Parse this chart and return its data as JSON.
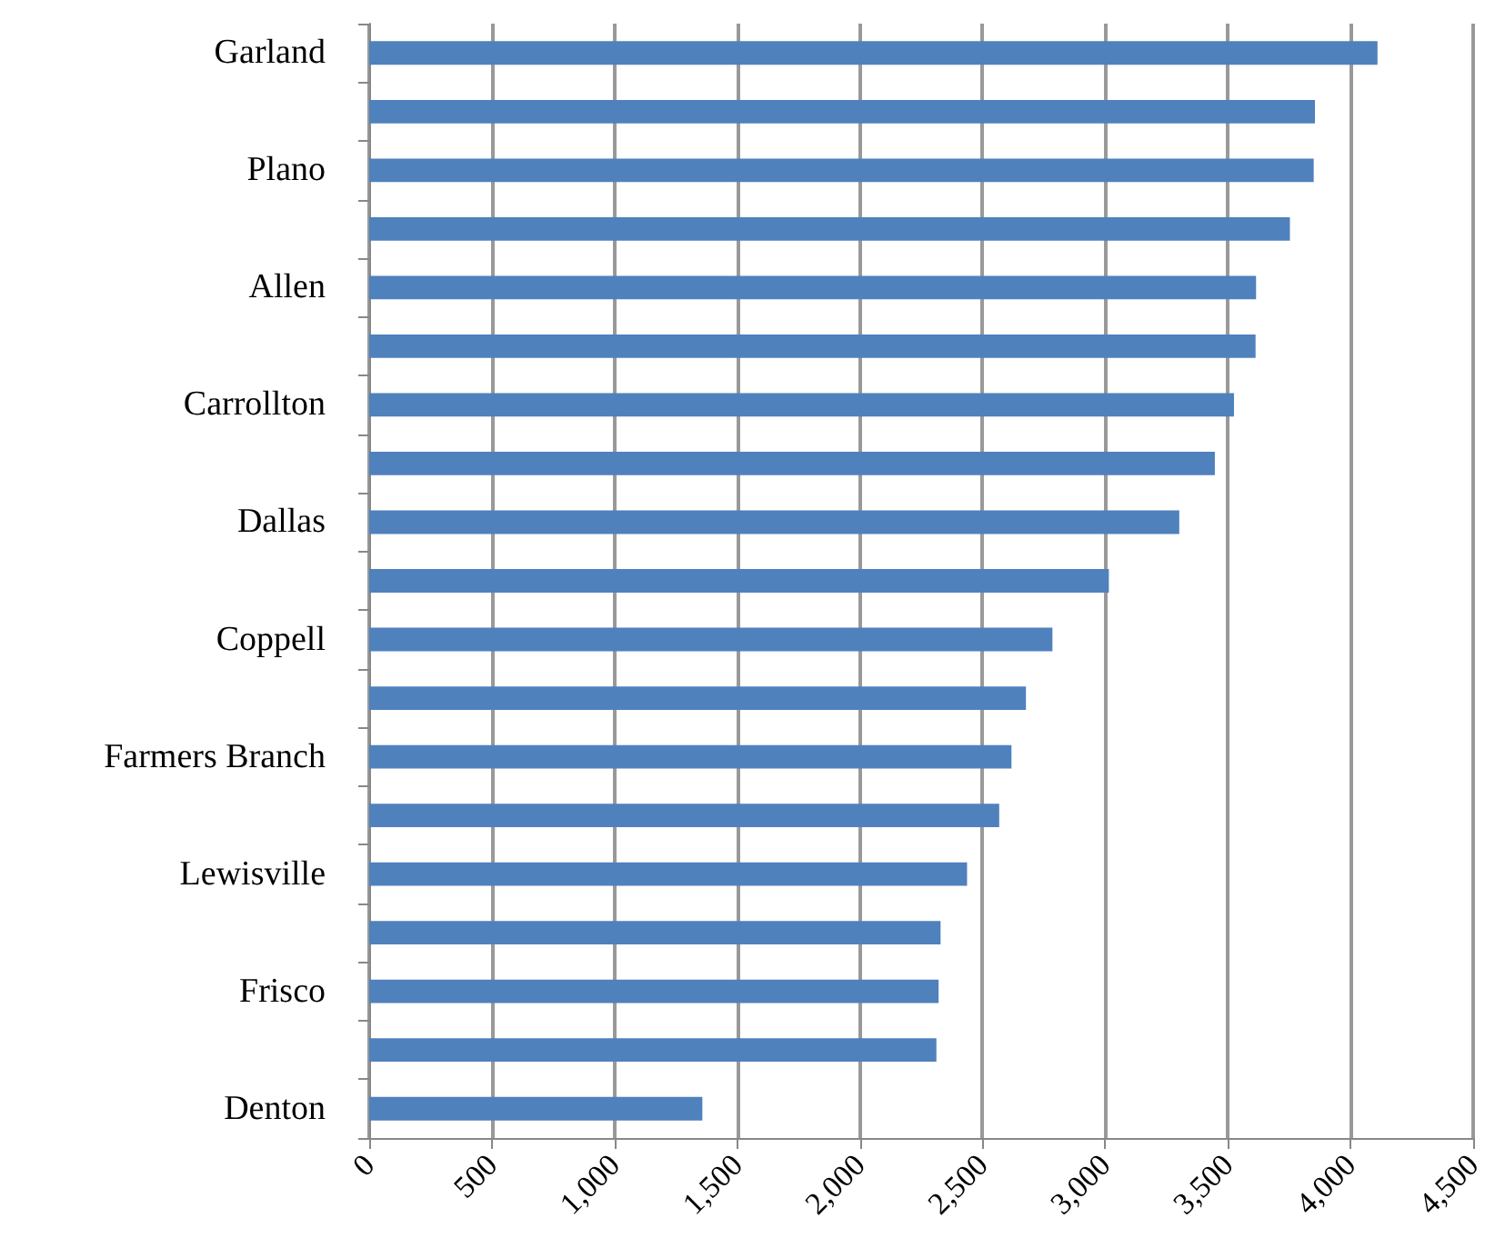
{
  "chart_data": {
    "type": "bar",
    "orientation": "horizontal",
    "categories": [
      "Garland",
      null,
      "Plano",
      null,
      "Allen",
      null,
      "Carrollton",
      null,
      "Dallas",
      null,
      "Coppell",
      null,
      "Farmers Branch",
      null,
      "Lewisville",
      null,
      "Frisco",
      null,
      "Denton"
    ],
    "values": [
      4110,
      3855,
      3850,
      3753,
      3615,
      3613,
      3525,
      3447,
      3302,
      3015,
      2785,
      2677,
      2618,
      2568,
      2437,
      2329,
      2321,
      2312,
      1358
    ],
    "color": "#4f81bd",
    "xlim": [
      0,
      4500
    ],
    "xticks": [
      {
        "value": 0,
        "label": "0"
      },
      {
        "value": 500,
        "label": "500"
      },
      {
        "value": 1000,
        "label": "1,000"
      },
      {
        "value": 1500,
        "label": "1,500"
      },
      {
        "value": 2000,
        "label": "2,000"
      },
      {
        "value": 2500,
        "label": "2,500"
      },
      {
        "value": 3000,
        "label": "3,000"
      },
      {
        "value": 3500,
        "label": "3,500"
      },
      {
        "value": 4000,
        "label": "4,000"
      },
      {
        "value": 4500,
        "label": "4,500"
      }
    ],
    "grid": "x"
  }
}
